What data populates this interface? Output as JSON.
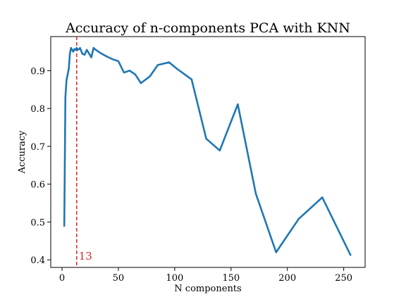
{
  "chart_data": {
    "type": "line",
    "title": "Accuracy of n-components PCA with KNN",
    "xlabel": "N components",
    "ylabel": "Accuracy",
    "xlim": [
      -10,
      269
    ],
    "ylim": [
      0.38,
      0.99
    ],
    "xticks": [
      0,
      50,
      100,
      150,
      200,
      250
    ],
    "yticks": [
      0.4,
      0.5,
      0.6,
      0.7,
      0.8,
      0.9
    ],
    "grid": false,
    "series": [
      {
        "color": "#1f77b4",
        "x": [
          2,
          3,
          4,
          5,
          6,
          7,
          8,
          9,
          10,
          11,
          12,
          13,
          14,
          15,
          16,
          18,
          20,
          22,
          24,
          26,
          28,
          30,
          35,
          40,
          45,
          50,
          55,
          60,
          65,
          70,
          78,
          85,
          95,
          102,
          115,
          128,
          140,
          156,
          172,
          190,
          210,
          231,
          256
        ],
        "y": [
          0.49,
          0.83,
          0.875,
          0.89,
          0.905,
          0.945,
          0.96,
          0.955,
          0.95,
          0.957,
          0.955,
          0.96,
          0.955,
          0.957,
          0.96,
          0.945,
          0.942,
          0.955,
          0.945,
          0.935,
          0.96,
          0.955,
          0.945,
          0.937,
          0.93,
          0.925,
          0.895,
          0.9,
          0.89,
          0.867,
          0.885,
          0.915,
          0.922,
          0.905,
          0.877,
          0.72,
          0.689,
          0.811,
          0.575,
          0.42,
          0.508,
          0.565,
          0.413
        ]
      }
    ],
    "vline": {
      "x": 13,
      "color": "#d62728",
      "style": "dashed"
    },
    "annotation": {
      "text": "13",
      "x": 13,
      "y": 0.41,
      "color": "#d62728"
    }
  }
}
